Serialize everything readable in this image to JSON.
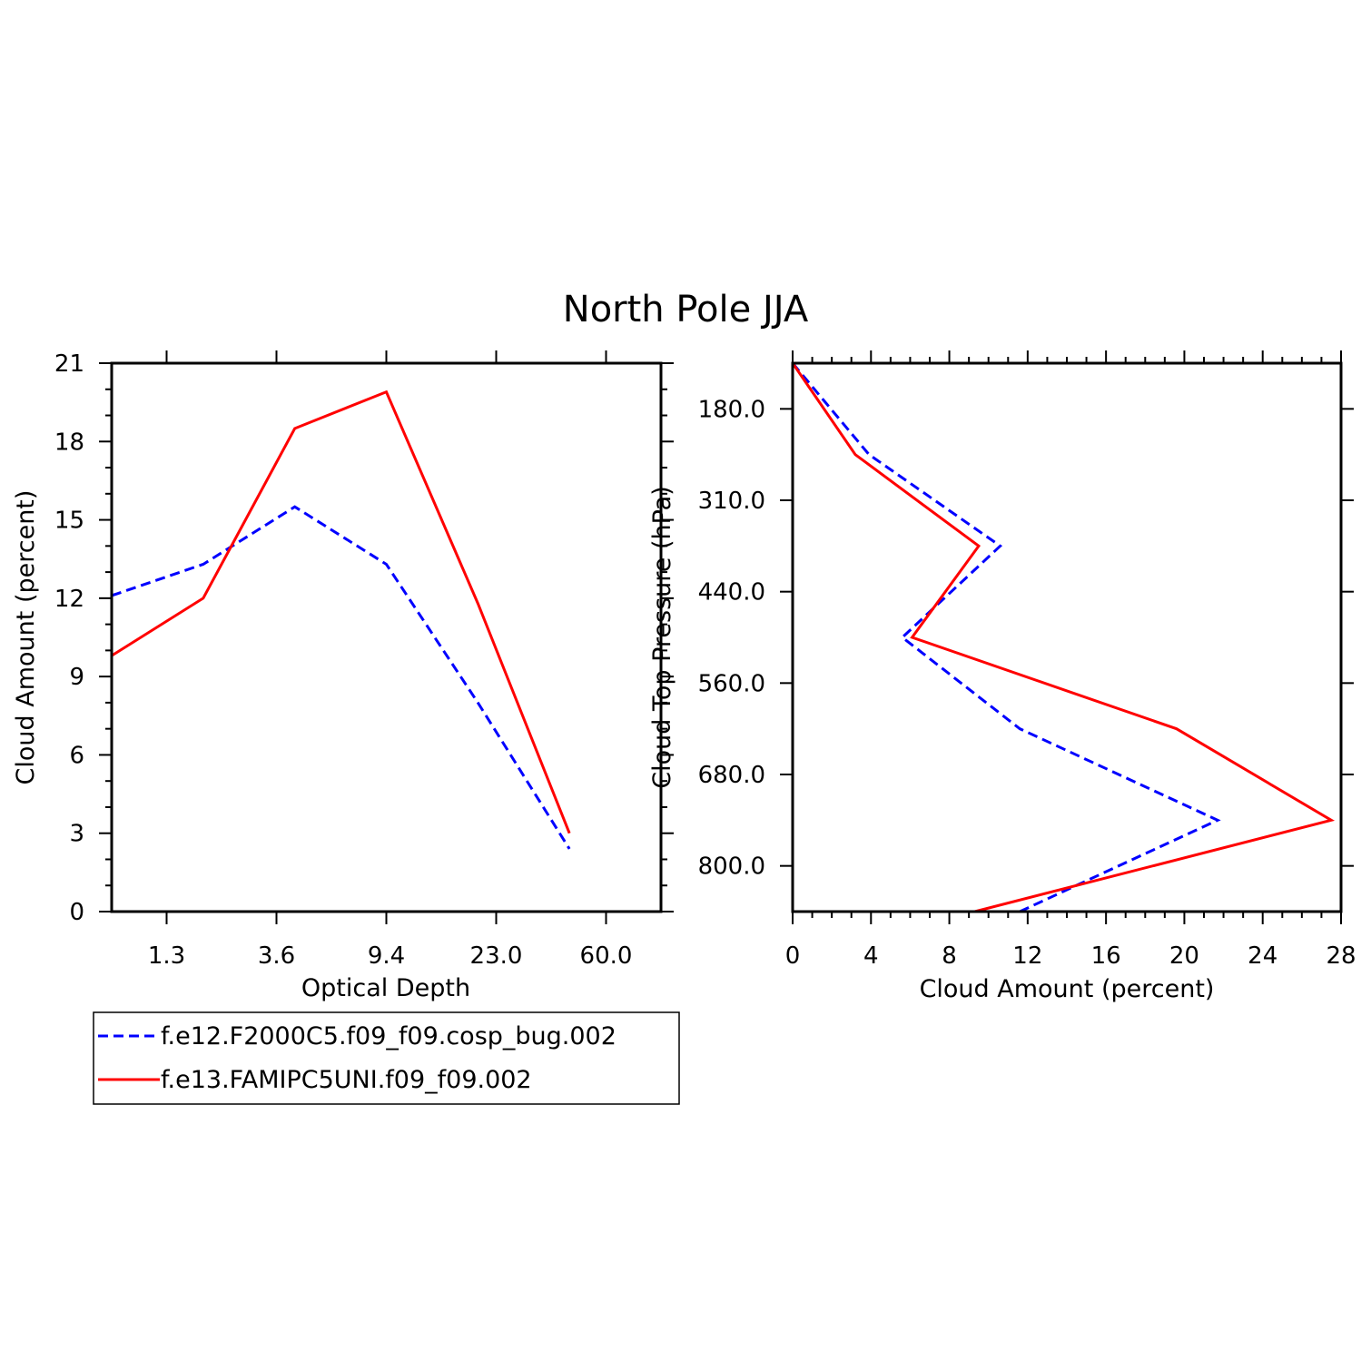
{
  "title": "North Pole JJA",
  "colors": {
    "series1": "#0000ff",
    "series2": "#ff0000",
    "axis": "#000000"
  },
  "chart_data": [
    {
      "type": "line",
      "xlabel": "Optical Depth",
      "ylabel": "Cloud Amount (percent)",
      "x_tick_labels": [
        "1.3",
        "3.6",
        "9.4",
        "23.0",
        "60.0"
      ],
      "y_ticks": [
        0,
        3,
        6,
        9,
        12,
        15,
        18,
        21
      ],
      "ylim": [
        0,
        21
      ],
      "x_bins": 6,
      "grid": false,
      "series": [
        {
          "name": "f.e12.F2000C5.f09_f09.cosp_bug.002",
          "style": "dashed",
          "values": [
            12.1,
            13.3,
            15.5,
            13.3,
            8.0,
            2.4
          ]
        },
        {
          "name": "f.e13.FAMIPC5UNI.f09_f09.002",
          "style": "solid",
          "values": [
            9.8,
            12.0,
            18.5,
            19.9,
            11.8,
            3.0
          ]
        }
      ]
    },
    {
      "type": "line",
      "xlabel": "Cloud Amount (percent)",
      "ylabel": "Cloud Top Pressure (hPa)",
      "x_ticks": [
        0,
        4,
        8,
        12,
        16,
        20,
        24,
        28
      ],
      "xlim": [
        0,
        28
      ],
      "y_tick_labels": [
        "180.0",
        "310.0",
        "440.0",
        "560.0",
        "680.0",
        "800.0"
      ],
      "y_levels": 7,
      "grid": false,
      "series": [
        {
          "name": "f.e12.F2000C5.f09_f09.cosp_bug.002",
          "style": "dashed",
          "values": [
            3.9,
            10.6,
            5.6,
            11.6,
            21.7,
            11.6
          ]
        },
        {
          "name": "f.e13.FAMIPC5UNI.f09_f09.002",
          "style": "solid",
          "values": [
            3.2,
            9.5,
            6.1,
            19.6,
            27.5,
            9.3
          ]
        }
      ],
      "top_value": 0
    }
  ],
  "legend": {
    "placement": "bottom-left",
    "entries": [
      {
        "label": "f.e12.F2000C5.f09_f09.cosp_bug.002",
        "style": "dashed"
      },
      {
        "label": "f.e13.FAMIPC5UNI.f09_f09.002",
        "style": "solid"
      }
    ]
  }
}
